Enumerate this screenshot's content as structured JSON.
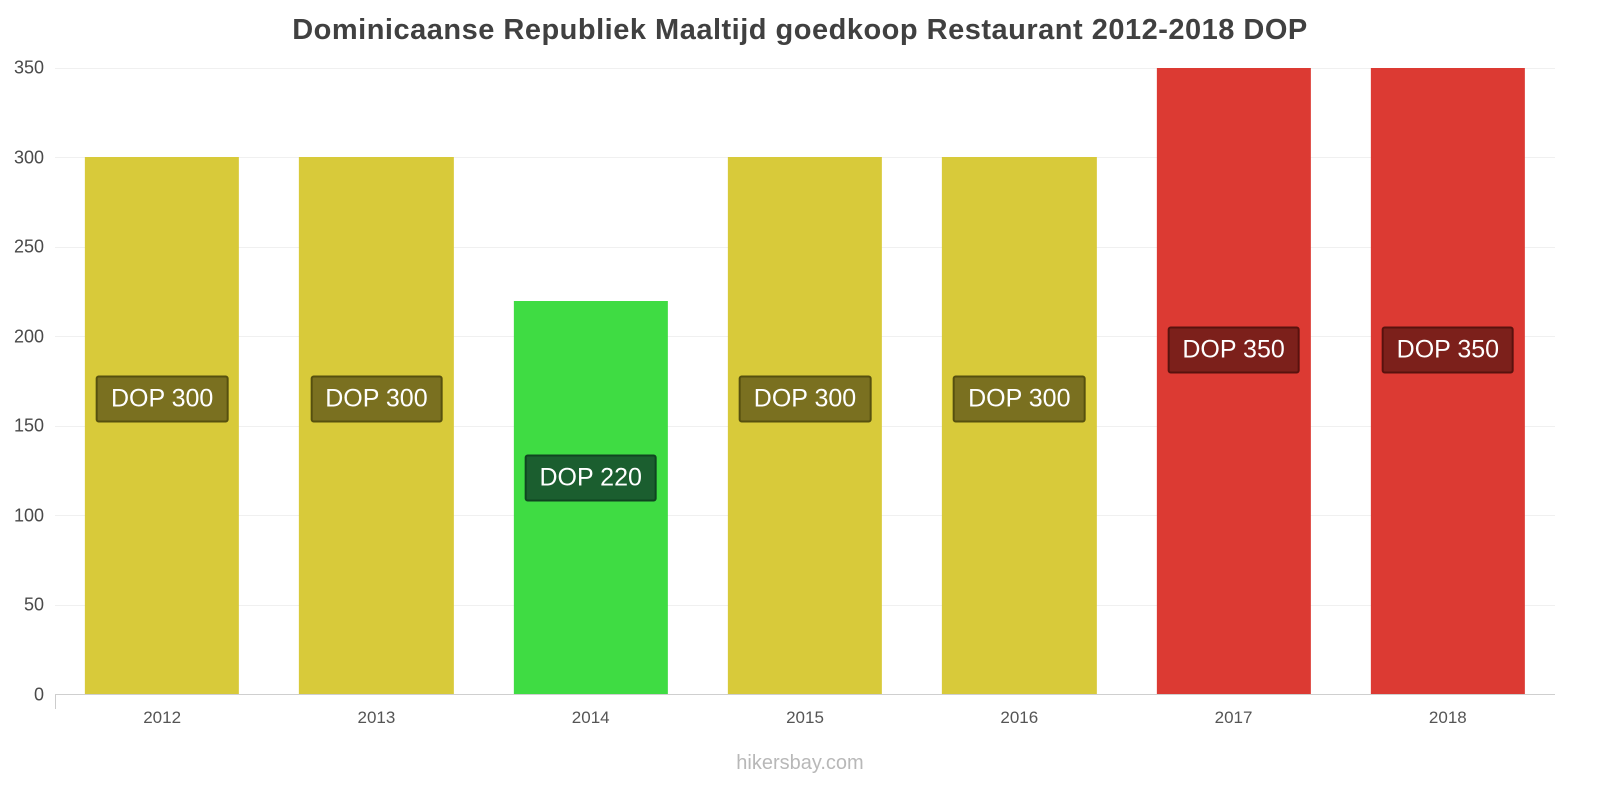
{
  "title": "Dominicaanse Republiek Maaltijd goedkoop Restaurant 2012-2018 DOP",
  "footer": "hikersbay.com",
  "colors": {
    "yellow_bar": "#d8ca3a",
    "green_bar": "#3fdc43",
    "red_bar": "#dc3a33",
    "olive_badge": "#7a7020",
    "dark_green_badge": "#1b5e2f",
    "dark_red_badge": "#7c201b",
    "title_text": "#404040",
    "axis_text": "#4a4a4a",
    "gridline": "#f0f0f0",
    "footer_text": "#b8b8b8"
  },
  "chart_data": {
    "type": "bar",
    "title": "Dominicaanse Republiek Maaltijd goedkoop Restaurant 2012-2018 DOP",
    "xlabel": "",
    "ylabel": "",
    "currency": "DOP",
    "categories": [
      "2012",
      "2013",
      "2014",
      "2015",
      "2016",
      "2017",
      "2018"
    ],
    "values": [
      300,
      300,
      220,
      300,
      300,
      350,
      350
    ],
    "bar_labels": [
      "DOP 300",
      "DOP 300",
      "DOP 220",
      "DOP 300",
      "DOP 300",
      "DOP 350",
      "DOP 350"
    ],
    "bar_colors": [
      "#d8ca3a",
      "#d8ca3a",
      "#3fdc43",
      "#d8ca3a",
      "#d8ca3a",
      "#dc3a33",
      "#dc3a33"
    ],
    "badge_colors": [
      "#7a7020",
      "#7a7020",
      "#1b5e2f",
      "#7a7020",
      "#7a7020",
      "#7c201b",
      "#7c201b"
    ],
    "badge_border_colors": [
      "#56500f",
      "#56500f",
      "#0f4520",
      "#56500f",
      "#56500f",
      "#58120e",
      "#58120e"
    ],
    "ylim": [
      0,
      350
    ],
    "yticks": [
      0,
      50,
      100,
      150,
      200,
      250,
      300,
      350
    ],
    "grid": "horizontal",
    "legend": "none",
    "watermark": "hikersbay.com"
  }
}
